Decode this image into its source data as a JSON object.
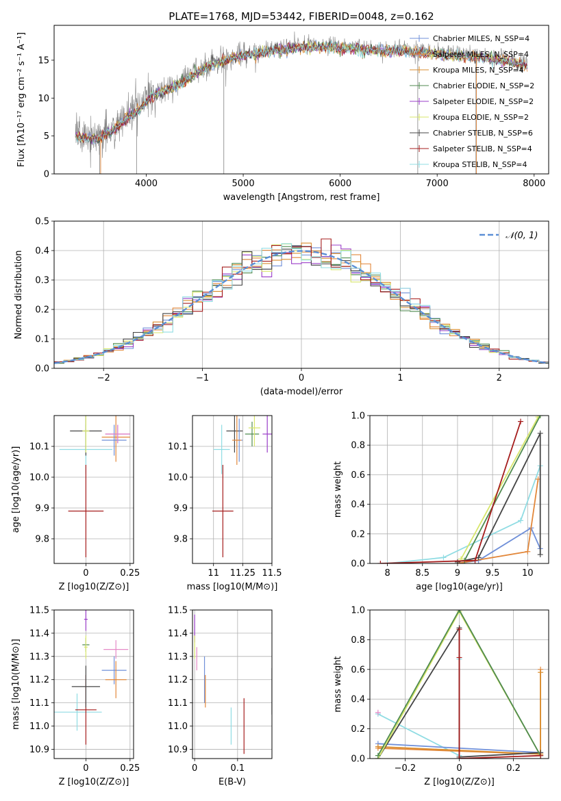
{
  "chart_data": [
    {
      "id": "spectrum",
      "type": "line",
      "title": "PLATE=1768, MJD=53442, FIBERID=0048, z=0.162",
      "xlabel": "wavelength [Angstrom, rest frame]",
      "ylabel": "Flux [fλ10⁻¹⁷ erg cm⁻² s⁻¹ A⁻¹]",
      "xlim": [
        3050,
        8150
      ],
      "ylim": [
        0,
        19.6
      ],
      "xticks": [
        4000,
        5000,
        6000,
        7000,
        8000
      ],
      "yticks": [
        0,
        5,
        10,
        15
      ],
      "grid": false,
      "legend_position": "right",
      "data_color": "#808080",
      "data_envelope": [
        [
          3270,
          5.2
        ],
        [
          3400,
          5.0
        ],
        [
          3500,
          4.9
        ],
        [
          3650,
          6.0
        ],
        [
          3750,
          7.0
        ],
        [
          3850,
          8.0
        ],
        [
          3950,
          9.0
        ],
        [
          4050,
          10.5
        ],
        [
          4150,
          11.0
        ],
        [
          4300,
          11.8
        ],
        [
          4400,
          12.5
        ],
        [
          4500,
          13.5
        ],
        [
          4650,
          14.5
        ],
        [
          4800,
          15.2
        ],
        [
          4950,
          15.8
        ],
        [
          5100,
          16.0
        ],
        [
          5300,
          16.5
        ],
        [
          5500,
          16.8
        ],
        [
          5700,
          17.0
        ],
        [
          5900,
          17.0
        ],
        [
          6100,
          16.8
        ],
        [
          6300,
          16.6
        ],
        [
          6500,
          16.5
        ],
        [
          6700,
          16.4
        ],
        [
          6900,
          16.2
        ],
        [
          7100,
          16.0
        ],
        [
          7300,
          15.8
        ],
        [
          7500,
          15.5
        ],
        [
          7700,
          15.2
        ],
        [
          7900,
          14.7
        ]
      ],
      "data_dips": [
        [
          3520,
          0
        ],
        [
          3900,
          0
        ],
        [
          4800,
          0
        ],
        [
          6800,
          0
        ],
        [
          7400,
          0
        ]
      ],
      "series": [
        {
          "name": "Chabrier MILES, N_SSP=4",
          "color": "#6f8fd8"
        },
        {
          "name": "Salpeter MILES, N_SSP=4",
          "color": "#e2873a"
        },
        {
          "name": "Kroupa MILES, N_SSP=4",
          "color": "#d98c2d"
        },
        {
          "name": "Chabrier ELODIE, N_SSP=2",
          "color": "#4f8a4f"
        },
        {
          "name": "Salpeter ELODIE, N_SSP=2",
          "color": "#9a3cc8"
        },
        {
          "name": "Kroupa ELODIE, N_SSP=2",
          "color": "#d7e66a"
        },
        {
          "name": "Chabrier STELIB, N_SSP=6",
          "color": "#444444"
        },
        {
          "name": "Salpeter STELIB, N_SSP=4",
          "color": "#a51c1c"
        },
        {
          "name": "Kroupa STELIB, N_SSP=4",
          "color": "#8fdce3"
        }
      ]
    },
    {
      "id": "residuals",
      "type": "line",
      "xlabel": "(data-model)/error",
      "ylabel": "Normed distribution",
      "xlim": [
        -2.5,
        2.5
      ],
      "ylim": [
        0,
        0.5
      ],
      "xticks": [
        -2,
        -1,
        0,
        1,
        2
      ],
      "yticks": [
        0.0,
        0.1,
        0.2,
        0.3,
        0.4,
        0.5
      ],
      "grid": true,
      "legend": "𝒩(0, 1)",
      "legend_position": "top-right",
      "normal_color": "#5b8fd6",
      "bin_width": 0.1,
      "hist_colors": [
        "#6f8fd8",
        "#e2873a",
        "#d98c2d",
        "#4f8a4f",
        "#9a3cc8",
        "#d7e66a",
        "#444444",
        "#a51c1c",
        "#8fdce3"
      ]
    },
    {
      "id": "age_vs_Z",
      "type": "scatter",
      "xlabel": "Z [log10(Z/Z⊙)]",
      "ylabel": "age  [log10(age/yr)]",
      "xlim": [
        -0.18,
        0.27
      ],
      "ylim": [
        9.72,
        10.2
      ],
      "xticks": [
        0.0,
        0.25
      ],
      "yticks": [
        9.8,
        9.9,
        10.0,
        10.1
      ],
      "grid": true,
      "points": [
        {
          "x": 0.0,
          "y": 10.09,
          "xerr": 0.15,
          "yerr": 0.08,
          "color": "#8fdce3"
        },
        {
          "x": 0.0,
          "y": 9.89,
          "xerr": 0.1,
          "yerr": 0.15,
          "color": "#a51c1c"
        },
        {
          "x": 0.0,
          "y": 10.15,
          "xerr": 0.09,
          "yerr": 0.08,
          "color": "#444444"
        },
        {
          "x": 0.0,
          "y": 10.15,
          "xerr": 0.02,
          "yerr": 0.07,
          "color": "#d7e66a"
        },
        {
          "x": 0.17,
          "y": 10.13,
          "xerr": 0.08,
          "yerr": 0.08,
          "color": "#e2873a"
        },
        {
          "x": 0.16,
          "y": 10.12,
          "xerr": 0.07,
          "yerr": 0.05,
          "color": "#6f8fd8"
        },
        {
          "x": 0.18,
          "y": 10.14,
          "xerr": 0.07,
          "yerr": 0.03,
          "color": "#9a3cc8"
        },
        {
          "x": 0.18,
          "y": 10.14,
          "xerr": 0.07,
          "yerr": 0.03,
          "color": "#e58ac7"
        }
      ]
    },
    {
      "id": "age_vs_mass",
      "type": "scatter",
      "xlabel": "mass [log10(M/M⊙)]",
      "xlim": [
        10.82,
        11.5
      ],
      "ylim": [
        9.72,
        10.2
      ],
      "xticks": [
        11.0,
        11.25,
        11.5
      ],
      "yticks": [
        9.8,
        9.9,
        10.0,
        10.1
      ],
      "grid": true,
      "points": [
        {
          "x": 11.07,
          "y": 10.09,
          "xerr": 0.07,
          "yerr": 0.08,
          "color": "#8fdce3"
        },
        {
          "x": 11.08,
          "y": 9.89,
          "xerr": 0.09,
          "yerr": 0.15,
          "color": "#a51c1c"
        },
        {
          "x": 11.18,
          "y": 10.15,
          "xerr": 0.07,
          "yerr": 0.07,
          "color": "#444444"
        },
        {
          "x": 11.22,
          "y": 10.12,
          "xerr": 0.03,
          "yerr": 0.07,
          "color": "#6f8fd8"
        },
        {
          "x": 11.2,
          "y": 10.12,
          "xerr": 0.04,
          "yerr": 0.08,
          "color": "#e2873a"
        },
        {
          "x": 11.33,
          "y": 10.14,
          "xerr": 0.06,
          "yerr": 0.04,
          "color": "#4f8a4f"
        },
        {
          "x": 11.35,
          "y": 10.16,
          "xerr": 0.05,
          "yerr": 0.06,
          "color": "#d7e66a"
        },
        {
          "x": 11.46,
          "y": 10.14,
          "xerr": 0.04,
          "yerr": 0.06,
          "color": "#9a3cc8"
        }
      ]
    },
    {
      "id": "massweight_vs_age",
      "type": "line",
      "xlabel": "age  [log10(age/yr)]",
      "ylabel": "mass weight",
      "xlim": [
        7.75,
        10.3
      ],
      "ylim": [
        0,
        1
      ],
      "xticks": [
        8.0,
        8.5,
        9.0,
        9.5,
        10.0
      ],
      "yticks": [
        0.0,
        0.2,
        0.4,
        0.6,
        0.8,
        1.0
      ],
      "grid": true,
      "series": [
        {
          "color": "#8fdce3",
          "points": [
            [
              8.0,
              0.0
            ],
            [
              8.8,
              0.04
            ],
            [
              9.9,
              0.29
            ],
            [
              10.18,
              0.66
            ]
          ]
        },
        {
          "color": "#6f8fd8",
          "points": [
            [
              9.0,
              0.0
            ],
            [
              9.3,
              0.02
            ],
            [
              10.05,
              0.24
            ],
            [
              10.18,
              0.1
            ]
          ]
        },
        {
          "color": "#e2873a",
          "points": [
            [
              9.0,
              0.0
            ],
            [
              10.0,
              0.08
            ],
            [
              10.15,
              0.57
            ]
          ]
        },
        {
          "color": "#444444",
          "points": [
            [
              9.0,
              0.01
            ],
            [
              9.3,
              0.04
            ],
            [
              10.18,
              0.88
            ],
            [
              10.18,
              0.06
            ]
          ]
        },
        {
          "color": "#d7e66a",
          "points": [
            [
              9.05,
              0.03
            ],
            [
              10.15,
              0.99
            ]
          ]
        },
        {
          "color": "#4f8a4f",
          "points": [
            [
              9.1,
              0.02
            ],
            [
              10.18,
              1.0
            ]
          ]
        },
        {
          "color": "#a51c1c",
          "points": [
            [
              7.9,
              0.0
            ],
            [
              9.25,
              0.02
            ],
            [
              9.9,
              0.96
            ]
          ]
        }
      ]
    },
    {
      "id": "mass_vs_Z",
      "type": "scatter",
      "xlabel": "Z [log10(Z/Z⊙)]",
      "ylabel": "mass [log10(M/M⊙)]",
      "xlim": [
        -0.18,
        0.27
      ],
      "ylim": [
        10.86,
        11.5
      ],
      "xticks": [
        0.0,
        0.25
      ],
      "yticks": [
        10.9,
        11.0,
        11.1,
        11.2,
        11.3,
        11.4,
        11.5
      ],
      "grid": true,
      "points": [
        {
          "x": -0.05,
          "y": 11.06,
          "xerr": 0.14,
          "yerr": 0.08,
          "color": "#8fdce3"
        },
        {
          "x": 0.0,
          "y": 11.07,
          "xerr": 0.06,
          "yerr": 0.15,
          "color": "#a51c1c"
        },
        {
          "x": 0.0,
          "y": 11.17,
          "xerr": 0.08,
          "yerr": 0.09,
          "color": "#444444"
        },
        {
          "x": 0.0,
          "y": 11.35,
          "xerr": 0.02,
          "yerr": 0.03,
          "color": "#4f8a4f"
        },
        {
          "x": 0.0,
          "y": 11.34,
          "xerr": 0.01,
          "yerr": 0.05,
          "color": "#d7e66a"
        },
        {
          "x": 0.0,
          "y": 11.46,
          "xerr": 0.01,
          "yerr": 0.05,
          "color": "#9a3cc8"
        },
        {
          "x": 0.17,
          "y": 11.33,
          "xerr": 0.07,
          "yerr": 0.04,
          "color": "#e58ac7"
        },
        {
          "x": 0.16,
          "y": 11.24,
          "xerr": 0.07,
          "yerr": 0.06,
          "color": "#6f8fd8"
        },
        {
          "x": 0.17,
          "y": 11.2,
          "xerr": 0.06,
          "yerr": 0.08,
          "color": "#e2873a"
        }
      ]
    },
    {
      "id": "mass_vs_ebv",
      "type": "scatter",
      "xlabel": "E(B-V)",
      "xlim": [
        -0.005,
        0.18
      ],
      "ylim": [
        10.86,
        11.5
      ],
      "xticks": [
        0.0,
        0.1
      ],
      "yticks": [
        10.9,
        11.0,
        11.1,
        11.2,
        11.3,
        11.4,
        11.5
      ],
      "grid": true,
      "points": [
        {
          "x": 0.0,
          "y": 11.42,
          "yerr": 0.06,
          "color": "#9a3cc8"
        },
        {
          "x": 0.0,
          "y": 11.34,
          "yerr": 0.05,
          "color": "#d7e66a"
        },
        {
          "x": 0.005,
          "y": 11.29,
          "yerr": 0.05,
          "color": "#e58ac7"
        },
        {
          "x": 0.023,
          "y": 11.2,
          "yerr": 0.1,
          "color": "#6f8fd8"
        },
        {
          "x": 0.025,
          "y": 11.15,
          "yerr": 0.07,
          "color": "#e2873a"
        },
        {
          "x": 0.085,
          "y": 11.0,
          "yerr": 0.08,
          "color": "#8fdce3"
        },
        {
          "x": 0.115,
          "y": 11.0,
          "yerr": 0.12,
          "color": "#a51c1c"
        },
        {
          "x": 0.18,
          "y": 11.15,
          "yerr": 0.1,
          "color": "#444444"
        }
      ]
    },
    {
      "id": "massweight_vs_Z",
      "type": "line",
      "xlabel": "Z [log10(Z/Z⊙)]",
      "ylabel": "mass weight",
      "xlim": [
        -0.33,
        0.33
      ],
      "ylim": [
        0,
        1
      ],
      "xticks": [
        -0.2,
        0.0,
        0.2
      ],
      "yticks": [
        0.0,
        0.2,
        0.4,
        0.6,
        0.8,
        1.0
      ],
      "grid": true,
      "series": [
        {
          "color": "#8fdce3",
          "points": [
            [
              -0.3,
              0.3
            ],
            [
              0.0,
              0.02
            ],
            [
              0.0,
              0.67
            ]
          ]
        },
        {
          "color": "#6f8fd8",
          "points": [
            [
              -0.3,
              0.1
            ],
            [
              0.3,
              0.04
            ]
          ]
        },
        {
          "color": "#e2873a",
          "points": [
            [
              -0.3,
              0.07
            ],
            [
              0.3,
              0.03
            ],
            [
              0.3,
              0.6
            ]
          ]
        },
        {
          "color": "#d98c2d",
          "points": [
            [
              -0.3,
              0.08
            ],
            [
              0.3,
              0.03
            ],
            [
              0.3,
              0.58
            ]
          ]
        },
        {
          "color": "#444444",
          "points": [
            [
              -0.3,
              0.0
            ],
            [
              0.0,
              0.88
            ],
            [
              0.0,
              0.01
            ],
            [
              0.3,
              0.04
            ]
          ]
        },
        {
          "color": "#d7e66a",
          "points": [
            [
              -0.3,
              0.0
            ],
            [
              0.0,
              0.99
            ],
            [
              0.3,
              0.02
            ]
          ]
        },
        {
          "color": "#4f8a4f",
          "points": [
            [
              -0.3,
              0.02
            ],
            [
              0.0,
              1.0
            ],
            [
              0.3,
              0.02
            ]
          ]
        },
        {
          "color": "#a51c1c",
          "points": [
            [
              0.0,
              0.68
            ],
            [
              0.0,
              0.87
            ],
            [
              0.0,
              0.0
            ],
            [
              0.3,
              0.02
            ]
          ]
        },
        {
          "color": "#e58ac7",
          "points": [
            [
              -0.3,
              0.31
            ]
          ]
        }
      ]
    }
  ]
}
